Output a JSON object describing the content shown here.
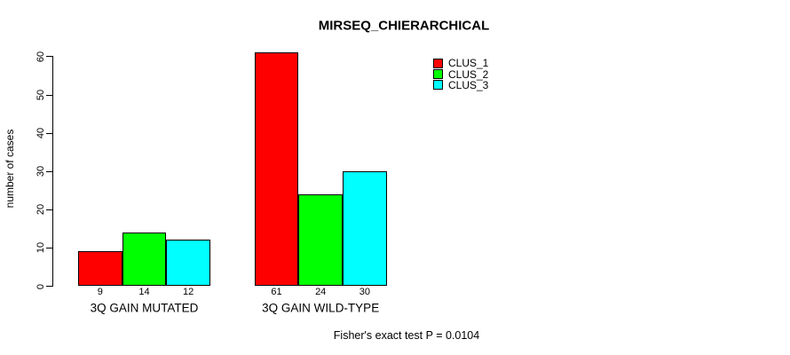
{
  "figure": {
    "background_color": "#FFFFFF",
    "text_color": "#000000"
  },
  "chart_data": {
    "type": "bar",
    "title": "MIRSEQ_CHIERARCHICAL",
    "xlabel": "",
    "ylabel": "number of cases",
    "ylim": [
      0,
      60
    ],
    "yticks": [
      0,
      10,
      20,
      30,
      40,
      50,
      60
    ],
    "grid": false,
    "bar_borders": "#000000",
    "legend_position": "inside-top-right",
    "categories": [
      "3Q GAIN MUTATED",
      "3Q GAIN WILD-TYPE"
    ],
    "series": [
      {
        "name": "CLUS_1",
        "color": "#FF0000",
        "values": [
          9,
          61
        ]
      },
      {
        "name": "CLUS_2",
        "color": "#00FF00",
        "values": [
          14,
          24
        ]
      },
      {
        "name": "CLUS_3",
        "color": "#00FFFF",
        "values": [
          12,
          30
        ]
      }
    ],
    "value_labels_per_category": [
      [
        9,
        14,
        12
      ],
      [
        61,
        24,
        30
      ]
    ],
    "annotation": "Fisher's exact test P = 0.0104"
  }
}
